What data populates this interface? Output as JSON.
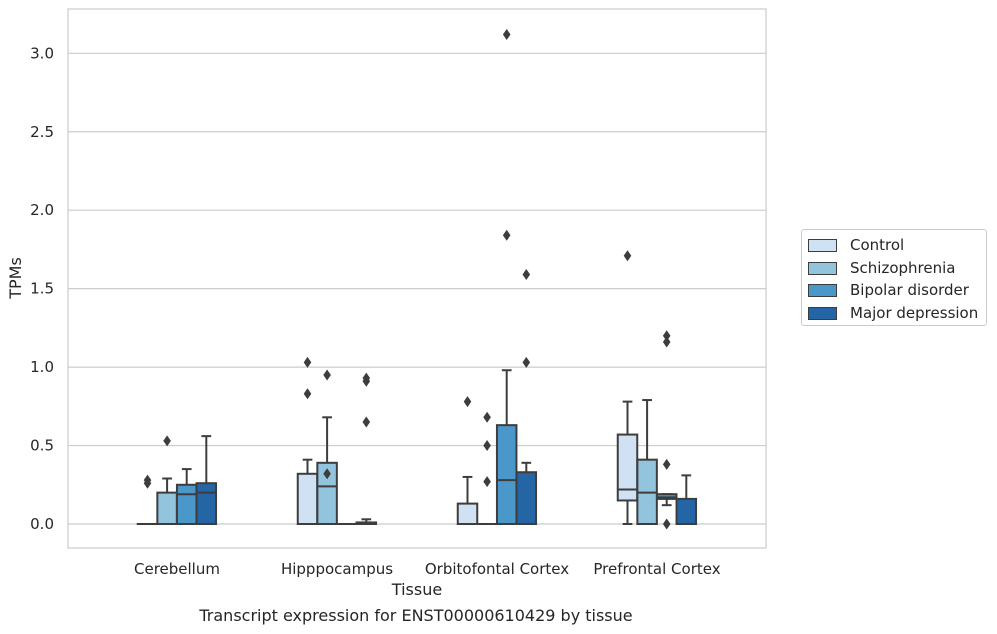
{
  "caption": "Transcript expression for ENST00000610429 by tissue",
  "chart_data": {
    "type": "box",
    "xlabel": "Tissue",
    "ylabel": "TPMs",
    "ylim": [
      -0.15,
      3.28
    ],
    "yticks": [
      0.0,
      0.5,
      1.0,
      1.5,
      2.0,
      2.5,
      3.0
    ],
    "ytick_labels": [
      "0.0",
      "0.5",
      "1.0",
      "1.5",
      "2.0",
      "2.5",
      "3.0"
    ],
    "grid": "horizontal",
    "legend_position": "right",
    "categories": [
      "Cerebellum",
      "Hipppocampus",
      "Orbitofontal Cortex",
      "Prefrontal Cortex"
    ],
    "series": [
      {
        "name": "Control",
        "color": "#cfe1f2",
        "boxes": [
          {
            "whislo": 0.0,
            "q1": 0.0,
            "med": 0.0,
            "q3": 0.0,
            "whishi": 0.0,
            "fliers": [
              0.26,
              0.28
            ]
          },
          {
            "whislo": 0.0,
            "q1": 0.0,
            "med": 0.0,
            "q3": 0.32,
            "whishi": 0.41,
            "fliers": [
              0.83,
              1.03
            ]
          },
          {
            "whislo": 0.0,
            "q1": 0.0,
            "med": 0.0,
            "q3": 0.13,
            "whishi": 0.3,
            "fliers": [
              0.78
            ]
          },
          {
            "whislo": 0.0,
            "q1": 0.15,
            "med": 0.22,
            "q3": 0.57,
            "whishi": 0.78,
            "fliers": [
              1.71
            ]
          }
        ]
      },
      {
        "name": "Schizophrenia",
        "color": "#93c4de",
        "boxes": [
          {
            "whislo": 0.0,
            "q1": 0.0,
            "med": 0.0,
            "q3": 0.2,
            "whishi": 0.29,
            "fliers": [
              0.53
            ]
          },
          {
            "whislo": 0.0,
            "q1": 0.0,
            "med": 0.24,
            "q3": 0.39,
            "whishi": 0.68,
            "fliers": [
              0.32,
              0.95
            ]
          },
          {
            "whislo": 0.0,
            "q1": 0.0,
            "med": 0.0,
            "q3": 0.0,
            "whishi": 0.0,
            "fliers": [
              0.27,
              0.5,
              0.68
            ]
          },
          {
            "whislo": 0.0,
            "q1": 0.0,
            "med": 0.2,
            "q3": 0.41,
            "whishi": 0.79,
            "fliers": []
          }
        ]
      },
      {
        "name": "Bipolar disorder",
        "color": "#4a98c9",
        "boxes": [
          {
            "whislo": 0.0,
            "q1": 0.0,
            "med": 0.19,
            "q3": 0.25,
            "whishi": 0.35,
            "fliers": []
          },
          {
            "whislo": 0.0,
            "q1": 0.0,
            "med": 0.0,
            "q3": 0.0,
            "whishi": 0.0,
            "fliers": []
          },
          {
            "whislo": 0.0,
            "q1": 0.0,
            "med": 0.28,
            "q3": 0.63,
            "whishi": 0.98,
            "fliers": [
              1.84,
              3.12
            ]
          },
          {
            "whislo": 0.12,
            "q1": 0.16,
            "med": 0.17,
            "q3": 0.19,
            "whishi": 0.19,
            "fliers": [
              0.0,
              0.38,
              1.16,
              1.2
            ]
          }
        ]
      },
      {
        "name": "Major depression",
        "color": "#2465a6",
        "boxes": [
          {
            "whislo": 0.0,
            "q1": 0.0,
            "med": 0.2,
            "q3": 0.26,
            "whishi": 0.56,
            "fliers": []
          },
          {
            "whislo": 0.0,
            "q1": 0.0,
            "med": 0.0,
            "q3": 0.01,
            "whishi": 0.03,
            "fliers": [
              0.65,
              0.91,
              0.93
            ]
          },
          {
            "whislo": 0.0,
            "q1": 0.0,
            "med": 0.0,
            "q3": 0.33,
            "whishi": 0.39,
            "fliers": [
              1.03,
              1.59
            ]
          },
          {
            "whislo": 0.0,
            "q1": 0.0,
            "med": 0.0,
            "q3": 0.16,
            "whishi": 0.31,
            "fliers": []
          }
        ]
      }
    ]
  }
}
